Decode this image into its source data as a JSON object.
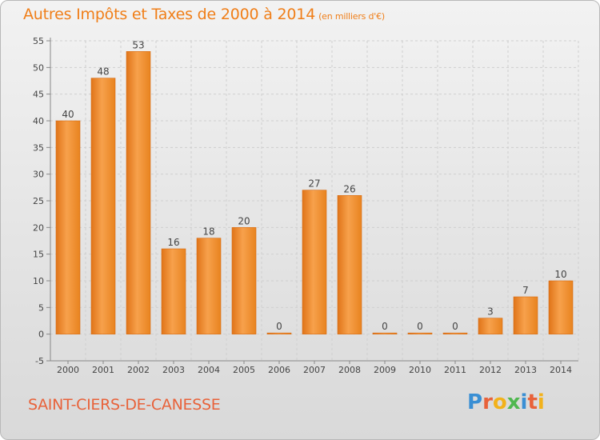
{
  "title": "Autres Impôts et Taxes de 2000 à 2014",
  "subtitle": "(en milliers d'€)",
  "place": "SAINT-CIERS-DE-CANESSE",
  "logo": {
    "text": "Proxiti",
    "colors": [
      "#3a8fd4",
      "#e8623a",
      "#f2b21b",
      "#4fb84f",
      "#3a8fd4",
      "#e8623a",
      "#f2b21b"
    ]
  },
  "colors": {
    "bar_light": "#f7a14c",
    "bar_dark": "#e07418",
    "title": "#f07e18",
    "place": "#e8623a"
  },
  "chart_data": {
    "type": "bar",
    "categories": [
      "2000",
      "2001",
      "2002",
      "2003",
      "2004",
      "2005",
      "2006",
      "2007",
      "2008",
      "2009",
      "2010",
      "2011",
      "2012",
      "2013",
      "2014"
    ],
    "values": [
      40,
      48,
      53,
      16,
      18,
      20,
      0,
      27,
      26,
      0,
      0,
      0,
      3,
      7,
      10
    ],
    "ylim": [
      -5,
      55
    ],
    "yticks": [
      -5,
      0,
      5,
      10,
      15,
      20,
      25,
      30,
      35,
      40,
      45,
      50,
      55
    ],
    "grid": true
  }
}
